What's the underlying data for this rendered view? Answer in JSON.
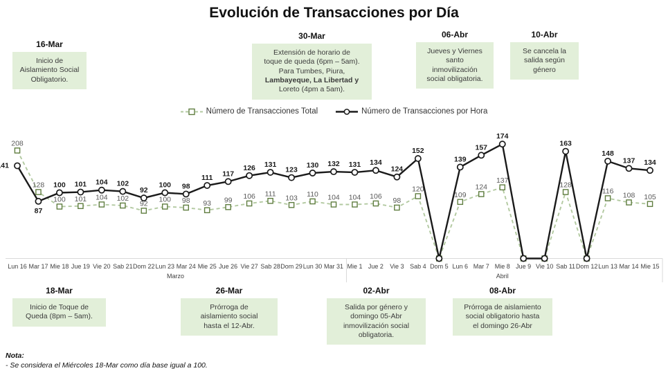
{
  "title": "Evolución de Transacciones por Día",
  "note": {
    "label": "Nota:",
    "text": "- Se considera el Miércoles 18-Mar como día base igual a 100."
  },
  "annotations_top": [
    {
      "date": "16-Mar",
      "lines": [
        {
          "t": "Inicio de"
        },
        {
          "t": "Aislamiento Social"
        },
        {
          "t": "Obligatorio."
        }
      ]
    },
    {
      "date": "30-Mar",
      "lines": [
        {
          "t": "Extensión de horario de"
        },
        {
          "t": "toque de queda (6pm – 5am)."
        },
        {
          "t": "Para Tumbes, Piura,"
        },
        {
          "t": "Lambayeque, La Libertad y",
          "b": true
        },
        {
          "t": "Loreto (4pm a 5am)."
        }
      ]
    },
    {
      "date": "06-Abr",
      "lines": [
        {
          "t": "Jueves y Viernes"
        },
        {
          "t": "santo"
        },
        {
          "t": "inmovilización"
        },
        {
          "t": "social obligatoria."
        }
      ]
    },
    {
      "date": "10-Abr",
      "lines": [
        {
          "t": "Se cancela la"
        },
        {
          "t": "salida según"
        },
        {
          "t": "género"
        }
      ]
    }
  ],
  "annotations_bottom": [
    {
      "date": "18-Mar",
      "lines": [
        {
          "t": "Inicio de Toque de"
        },
        {
          "t": "Queda (8pm – 5am)."
        }
      ]
    },
    {
      "date": "26-Mar",
      "lines": [
        {
          "t": "Prórroga de"
        },
        {
          "t": "aislamiento social"
        },
        {
          "t": "hasta el 12-Abr."
        }
      ]
    },
    {
      "date": "02-Abr",
      "lines": [
        {
          "t": "Salida por género y"
        },
        {
          "t": "domingo 05-Abr"
        },
        {
          "t": "inmovilización social"
        },
        {
          "t": "obligatoria."
        }
      ]
    },
    {
      "date": "08-Abr",
      "lines": [
        {
          "t": "Prórroga de aislamiento"
        },
        {
          "t": "social obligatorio hasta"
        },
        {
          "t": "el domingo 26-Abr"
        }
      ]
    }
  ],
  "colors": {
    "annotation_box_fill": "#e2efd9",
    "axis_line": "#d9d9d9",
    "tick_label": "#404040",
    "green_label": "#595959",
    "black_label": "#1a1a1a"
  },
  "chart_data": {
    "type": "line",
    "title": "Evolución de Transacciones por Día",
    "xlabel": "",
    "ylabel": "",
    "grid": false,
    "legend_position": "top",
    "categories": [
      "Lun 16",
      "Mar 17",
      "Mie 18",
      "Jue 19",
      "Vie 20",
      "Sab 21",
      "Dom 22",
      "Lun 23",
      "Mar 24",
      "Mie 25",
      "Jue 26",
      "Vie 27",
      "Sab 28",
      "Dom 29",
      "Lun 30",
      "Mar 31",
      "Mie 1",
      "Jue 2",
      "Vie 3",
      "Sab 4",
      "Dom 5",
      "Lun 6",
      "Mar 7",
      "Mie 8",
      "Jue 9",
      "Vie 10",
      "Sab 11",
      "Dom 12",
      "Lun 13",
      "Mar 14",
      "Mie 15"
    ],
    "month_groups": [
      {
        "label": "Marzo",
        "from": 0,
        "to": 15
      },
      {
        "label": "Abril",
        "from": 16,
        "to": 30
      }
    ],
    "series": [
      {
        "name": "Número de Transacciones Total",
        "style": "dashed",
        "marker": "square",
        "color": "#b2c9a0",
        "marker_color": "#5f7d3f",
        "values": [
          208,
          128,
          100,
          101,
          104,
          102,
          92,
          100,
          98,
          93,
          99,
          106,
          111,
          103,
          110,
          104,
          104,
          106,
          98,
          120,
          0,
          109,
          124,
          137,
          0,
          0,
          128,
          0,
          116,
          108,
          105
        ]
      },
      {
        "name": "Número de Transacciones por Hora",
        "style": "solid",
        "marker": "circle",
        "color": "#1a1a1a",
        "marker_color": "#1a1a1a",
        "values": [
          141,
          87,
          100,
          101,
          104,
          102,
          92,
          100,
          98,
          111,
          117,
          126,
          131,
          123,
          130,
          132,
          131,
          134,
          124,
          152,
          0,
          139,
          157,
          174,
          0,
          0,
          163,
          0,
          148,
          137,
          134
        ]
      }
    ],
    "baseline_value": 0,
    "zero_value_days": [
      "Dom 5",
      "Jue 9",
      "Vie 10",
      "Dom 12"
    ]
  }
}
